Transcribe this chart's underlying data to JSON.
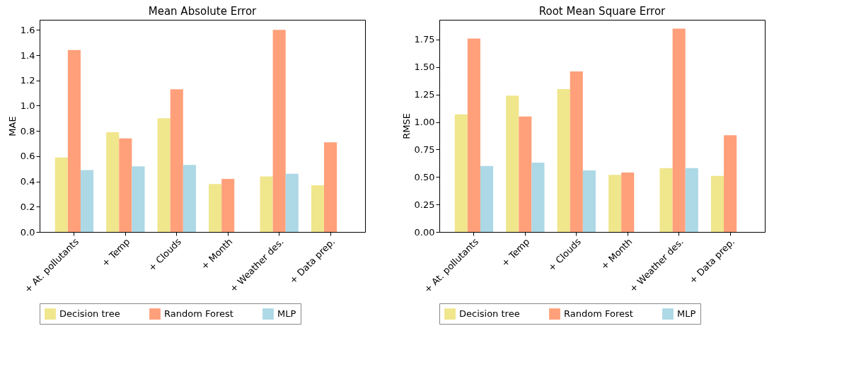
{
  "chart_data": [
    {
      "type": "bar",
      "title": "Mean Absolute Error",
      "ylabel": "MAE",
      "categories": [
        "+ At. pollutants",
        "+ Temp",
        "+ Clouds",
        "+ Month",
        "+ Weather des.",
        "+ Data prep."
      ],
      "series": [
        {
          "name": "Decision tree",
          "color": "#f0e68c",
          "values": [
            0.59,
            0.79,
            0.9,
            0.38,
            0.44,
            0.37
          ]
        },
        {
          "name": "Random Forest",
          "color": "#ffa07a",
          "values": [
            1.44,
            0.74,
            1.13,
            0.42,
            1.6,
            0.71
          ]
        },
        {
          "name": "MLP",
          "color": "#add8e6",
          "values": [
            0.49,
            0.52,
            0.53,
            null,
            0.46,
            null
          ]
        }
      ],
      "ylim": [
        0,
        1.68
      ],
      "yticks": [
        {
          "value": 0,
          "label": "0.0"
        },
        0.2,
        0.4,
        0.6,
        0.8,
        {
          "value": 1,
          "label": "1.0"
        },
        1.2,
        1.4,
        1.6
      ],
      "grid": false,
      "legend": "bottom"
    },
    {
      "type": "bar",
      "title": "Root Mean Square Error",
      "ylabel": "RMSE",
      "categories": [
        "+ At. pollutants",
        "+ Temp",
        "+ Clouds",
        "+ Month",
        "+ Weather des.",
        "+ Data prep."
      ],
      "series": [
        {
          "name": "Decision tree",
          "color": "#f0e68c",
          "values": [
            1.07,
            1.24,
            1.3,
            0.52,
            0.58,
            0.51
          ]
        },
        {
          "name": "Random Forest",
          "color": "#ffa07a",
          "values": [
            1.76,
            1.05,
            1.46,
            0.54,
            1.85,
            0.88
          ]
        },
        {
          "name": "MLP",
          "color": "#add8e6",
          "values": [
            0.6,
            0.63,
            0.56,
            null,
            0.58,
            null
          ]
        }
      ],
      "ylim": [
        0,
        1.93
      ],
      "yticks": [
        {
          "value": 0,
          "label": "0.00"
        },
        0.25,
        {
          "value": 0.5,
          "label": "0.50"
        },
        0.75,
        {
          "value": 1,
          "label": "1.00"
        },
        1.25,
        {
          "value": 1.5,
          "label": "1.50"
        },
        1.75
      ],
      "grid": false,
      "legend": "bottom"
    }
  ]
}
